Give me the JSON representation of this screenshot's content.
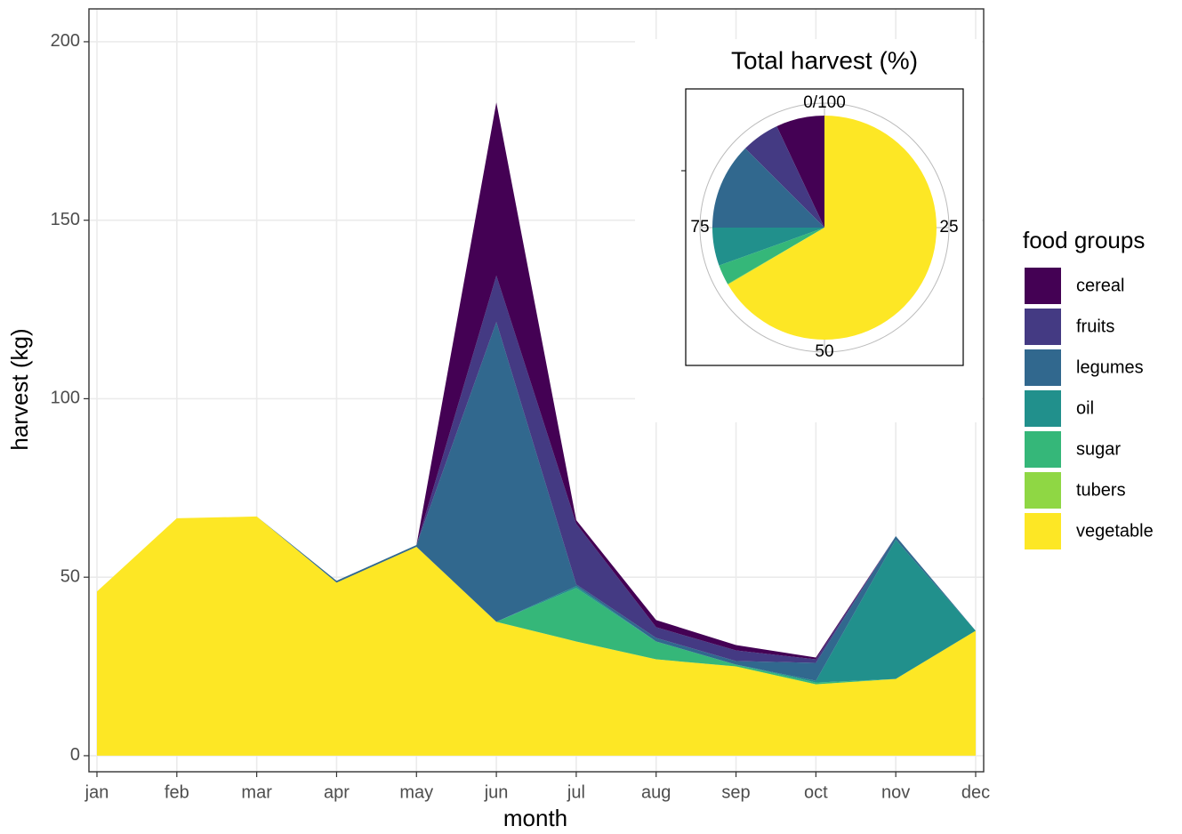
{
  "chart_data": [
    {
      "type": "area",
      "x_label": "month",
      "y_label": "harvest (kg)",
      "categories": [
        "jan",
        "feb",
        "mar",
        "apr",
        "may",
        "jun",
        "jul",
        "aug",
        "sep",
        "oct",
        "nov",
        "dec"
      ],
      "series": [
        {
          "name": "cereal",
          "color": "#440154",
          "values": [
            0,
            0,
            0,
            0,
            0,
            48.5,
            1,
            2,
            1.5,
            0.5,
            0,
            0
          ]
        },
        {
          "name": "fruits",
          "color": "#443A83",
          "values": [
            0,
            0,
            0,
            0,
            0,
            13,
            17,
            3,
            3,
            1,
            0,
            0
          ]
        },
        {
          "name": "legumes",
          "color": "#31688E",
          "values": [
            0,
            0,
            0,
            0.5,
            0.5,
            84,
            0.5,
            1,
            1,
            5,
            1,
            0
          ]
        },
        {
          "name": "oil",
          "color": "#21908C",
          "values": [
            0,
            0,
            0,
            0,
            0,
            0,
            0.5,
            0,
            0,
            0.5,
            39,
            0
          ]
        },
        {
          "name": "sugar",
          "color": "#35B779",
          "values": [
            0,
            0,
            0,
            0,
            0,
            0,
            15,
            5,
            0.5,
            0.5,
            0,
            0
          ]
        },
        {
          "name": "tubers",
          "color": "#8FD744",
          "values": [
            0,
            0,
            0,
            0,
            0,
            0,
            0,
            0,
            0,
            0,
            0,
            0
          ]
        },
        {
          "name": "vegetable",
          "color": "#FDE725",
          "values": [
            46,
            66.5,
            67,
            48.5,
            58.5,
            37.5,
            32,
            27,
            25,
            20,
            21.5,
            35
          ]
        }
      ],
      "stacked": true,
      "ylim": [
        -4.5,
        209.2
      ],
      "yticks": [
        0,
        50,
        100,
        150,
        200
      ],
      "grid": true,
      "legend_title": "food groups",
      "legend_position": "right"
    },
    {
      "type": "pie",
      "title": "Total harvest (%)",
      "categories": [
        "cereal",
        "fruits",
        "legumes",
        "oil",
        "sugar",
        "tubers",
        "vegetable"
      ],
      "colors": [
        "#440154",
        "#443A83",
        "#31688E",
        "#21908C",
        "#35B779",
        "#8FD744",
        "#FDE725"
      ],
      "values": [
        7,
        5.5,
        12.5,
        5.5,
        2.9,
        0.1,
        66.5
      ],
      "thetaticks": [
        {
          "value": 0,
          "label": "0/100"
        },
        25,
        50,
        75
      ]
    }
  ]
}
